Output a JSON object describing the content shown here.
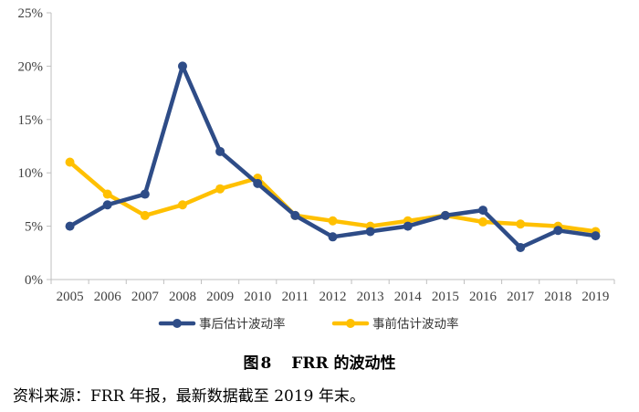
{
  "chart_data": {
    "type": "line",
    "title": "",
    "xlabel": "",
    "ylabel": "",
    "categories": [
      "2005",
      "2006",
      "2007",
      "2008",
      "2009",
      "2010",
      "2011",
      "2012",
      "2013",
      "2014",
      "2015",
      "2016",
      "2017",
      "2018",
      "2019"
    ],
    "ylim": [
      0,
      25
    ],
    "yticks": [
      0,
      5,
      10,
      15,
      20,
      25
    ],
    "ytick_labels": [
      "0%",
      "5%",
      "10%",
      "15%",
      "20%",
      "25%"
    ],
    "grid": false,
    "legend_position": "bottom",
    "series": [
      {
        "name": "事后估计波动率",
        "color": "#2E4C87",
        "values": [
          5.0,
          7.0,
          8.0,
          20.0,
          12.0,
          9.0,
          6.0,
          4.0,
          4.5,
          5.0,
          6.0,
          6.5,
          3.0,
          4.6,
          4.1
        ]
      },
      {
        "name": "事前估计波动率",
        "color": "#FFC000",
        "values": [
          11.0,
          8.0,
          6.0,
          7.0,
          8.5,
          9.5,
          6.0,
          5.5,
          5.0,
          5.5,
          6.0,
          5.4,
          5.2,
          5.0,
          4.5
        ]
      }
    ]
  },
  "caption": {
    "label": "图",
    "number": "8",
    "text": "FRR 的波动性"
  },
  "source_note": "资料来源：FRR 年报，最新数据截至 2019 年末。"
}
